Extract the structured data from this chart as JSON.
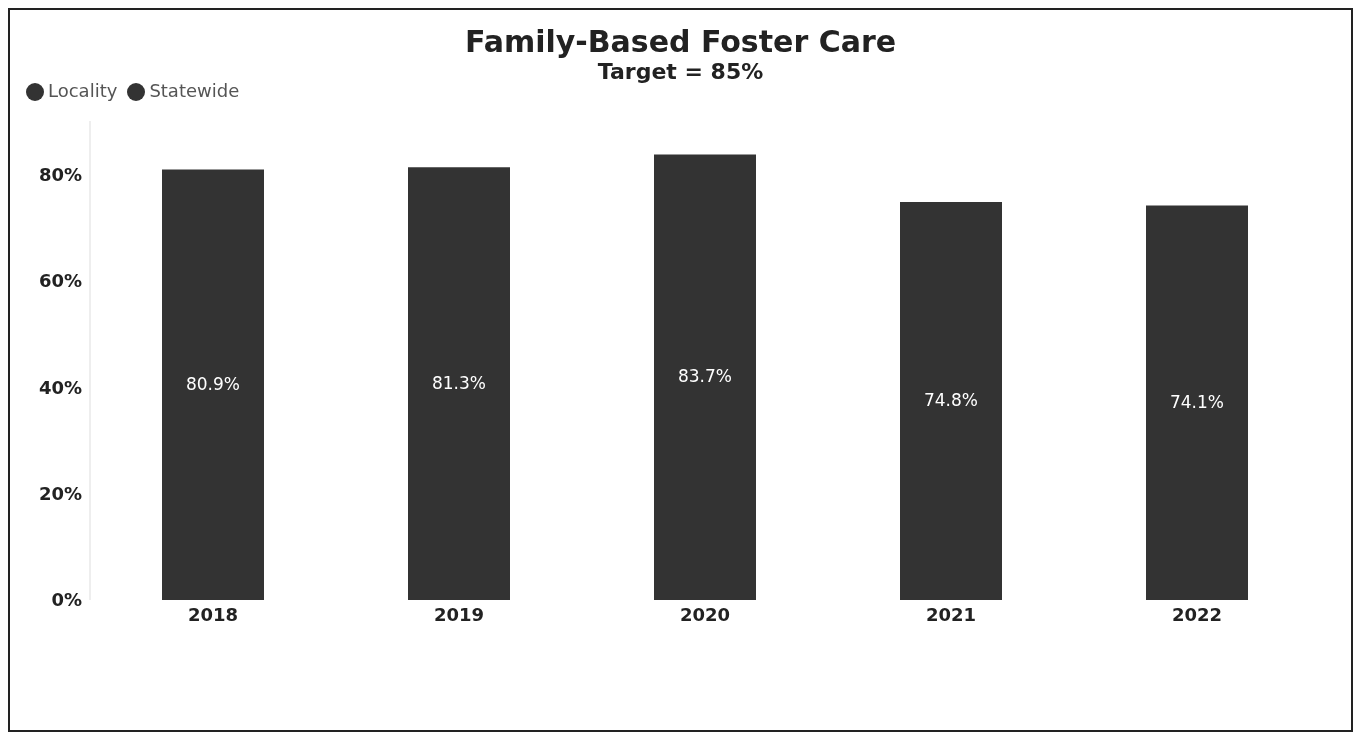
{
  "chart_data": {
    "type": "bar",
    "title": "Family-Based Foster Care",
    "subtitle": "Target = 85%",
    "categories": [
      "2018",
      "2019",
      "2020",
      "2021",
      "2022"
    ],
    "series": [
      {
        "name": "Locality",
        "color": "#333333",
        "values": [
          80.9,
          81.3,
          83.7,
          74.8,
          74.1
        ],
        "value_labels": [
          "80.9%",
          "81.3%",
          "83.7%",
          "74.8%",
          "74.1%"
        ]
      },
      {
        "name": "Statewide",
        "type": "line",
        "color": "#333333",
        "values": [
          null,
          null,
          null,
          null,
          null
        ]
      }
    ],
    "ylim": [
      0,
      90
    ],
    "yticks": [
      {
        "value": 0,
        "label": "0%"
      },
      {
        "value": 20,
        "label": "20%"
      },
      {
        "value": 40,
        "label": "40%"
      },
      {
        "value": 60,
        "label": "60%"
      },
      {
        "value": 80,
        "label": "80%"
      }
    ],
    "grid": false,
    "legend": "top left"
  }
}
